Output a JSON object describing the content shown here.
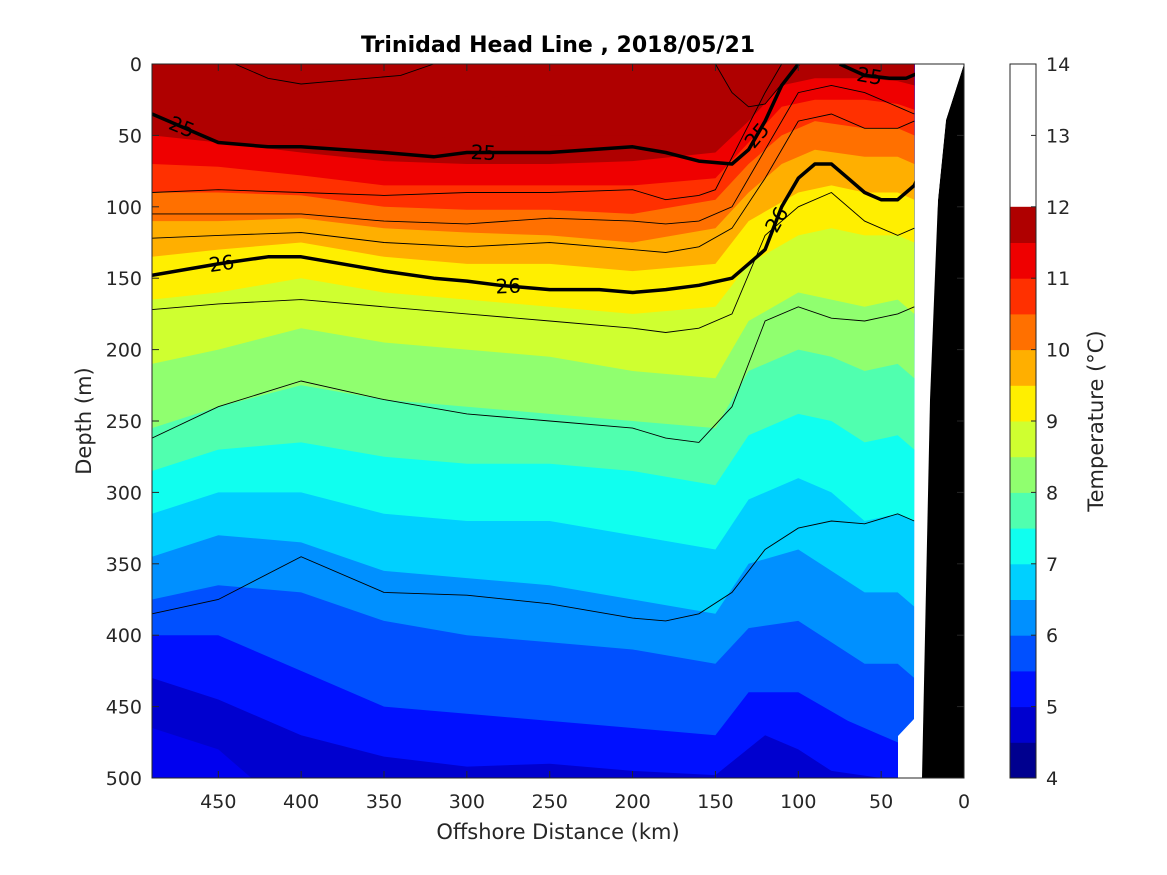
{
  "chart_data": {
    "type": "contour",
    "title": "Trinidad Head Line , 2018/05/21",
    "xlabel": "Offshore Distance (km)",
    "ylabel": "Depth (m)",
    "x_ticks": [
      "450",
      "400",
      "350",
      "300",
      "250",
      "200",
      "150",
      "100",
      "50",
      "0"
    ],
    "x_tick_values": [
      450,
      400,
      350,
      300,
      250,
      200,
      150,
      100,
      50,
      0
    ],
    "xlim": [
      490,
      0
    ],
    "y_ticks": [
      "0",
      "50",
      "100",
      "150",
      "200",
      "250",
      "300",
      "350",
      "400",
      "450",
      "500"
    ],
    "y_tick_values": [
      0,
      50,
      100,
      150,
      200,
      250,
      300,
      350,
      400,
      450,
      500
    ],
    "ylim": [
      0,
      500
    ],
    "colorbar": {
      "label": "Temperature (°C)",
      "ticks": [
        "4",
        "5",
        "6",
        "7",
        "8",
        "9",
        "10",
        "11",
        "12",
        "13",
        "14"
      ],
      "range": [
        4,
        14
      ],
      "step": 0.5,
      "colors": [
        "#00008f",
        "#0000cf",
        "#0010ff",
        "#0050ff",
        "#0090ff",
        "#00d0ff",
        "#10ffef",
        "#50ffaf",
        "#90ff6f",
        "#cfff30",
        "#ffef00",
        "#ffaf00",
        "#ff7000",
        "#ff3000",
        "#ef0000",
        "#af0000"
      ]
    },
    "density_contour_labels": [
      "25",
      "26"
    ],
    "temperature_layers": [
      {
        "t": 4.5,
        "x": [
          490,
          450,
          430,
          400,
          350,
          300,
          250,
          200,
          150,
          100,
          50,
          30
        ],
        "depth": [
          465,
          480,
          500,
          500,
          500,
          500,
          500,
          500,
          500,
          500,
          500,
          500
        ]
      },
      {
        "t": 5.0,
        "x": [
          490,
          450,
          400,
          350,
          300,
          250,
          200,
          150,
          120,
          100,
          80,
          50,
          30
        ],
        "depth": [
          430,
          445,
          470,
          485,
          492,
          490,
          495,
          498,
          470,
          480,
          495,
          500,
          500
        ]
      },
      {
        "t": 5.5,
        "x": [
          490,
          450,
          400,
          350,
          300,
          250,
          200,
          150,
          130,
          100,
          70,
          50,
          30
        ],
        "depth": [
          400,
          400,
          425,
          450,
          455,
          460,
          465,
          470,
          440,
          440,
          460,
          470,
          480
        ]
      },
      {
        "t": 6.0,
        "x": [
          490,
          450,
          400,
          350,
          300,
          250,
          200,
          150,
          130,
          100,
          80,
          60,
          40,
          30
        ],
        "depth": [
          375,
          365,
          370,
          390,
          400,
          405,
          410,
          420,
          395,
          390,
          405,
          420,
          420,
          430
        ]
      },
      {
        "t": 6.5,
        "x": [
          490,
          450,
          400,
          350,
          300,
          250,
          200,
          150,
          130,
          100,
          80,
          60,
          40,
          30
        ],
        "depth": [
          345,
          330,
          335,
          355,
          360,
          365,
          375,
          385,
          350,
          340,
          355,
          370,
          370,
          380
        ]
      },
      {
        "t": 7.0,
        "x": [
          490,
          450,
          400,
          350,
          300,
          250,
          200,
          150,
          130,
          100,
          80,
          60,
          40,
          30
        ],
        "depth": [
          315,
          300,
          300,
          315,
          320,
          320,
          330,
          340,
          305,
          290,
          300,
          320,
          315,
          320
        ]
      },
      {
        "t": 7.5,
        "x": [
          490,
          450,
          400,
          350,
          300,
          250,
          200,
          150,
          130,
          100,
          80,
          60,
          40,
          30
        ],
        "depth": [
          285,
          270,
          265,
          275,
          280,
          280,
          285,
          295,
          260,
          245,
          250,
          265,
          260,
          270
        ]
      },
      {
        "t": 8.0,
        "x": [
          490,
          450,
          400,
          350,
          300,
          250,
          200,
          150,
          130,
          100,
          80,
          60,
          40,
          30
        ],
        "depth": [
          255,
          240,
          225,
          235,
          240,
          245,
          250,
          255,
          215,
          200,
          205,
          215,
          210,
          220
        ]
      },
      {
        "t": 8.5,
        "x": [
          490,
          450,
          400,
          350,
          300,
          250,
          200,
          150,
          130,
          100,
          80,
          60,
          40,
          30
        ],
        "depth": [
          210,
          200,
          185,
          195,
          200,
          205,
          215,
          220,
          180,
          160,
          165,
          170,
          165,
          175
        ]
      },
      {
        "t": 9.0,
        "x": [
          490,
          450,
          400,
          350,
          300,
          250,
          200,
          150,
          130,
          100,
          80,
          60,
          40,
          30
        ],
        "depth": [
          165,
          160,
          150,
          160,
          165,
          170,
          175,
          170,
          140,
          120,
          115,
          120,
          120,
          125
        ]
      },
      {
        "t": 9.5,
        "x": [
          490,
          450,
          400,
          350,
          300,
          250,
          200,
          150,
          130,
          100,
          80,
          60,
          40,
          30
        ],
        "depth": [
          135,
          130,
          125,
          135,
          140,
          140,
          145,
          140,
          110,
          90,
          85,
          90,
          90,
          95
        ]
      },
      {
        "t": 10.0,
        "x": [
          490,
          450,
          400,
          350,
          300,
          250,
          200,
          150,
          130,
          110,
          90,
          60,
          40,
          30
        ],
        "depth": [
          110,
          110,
          108,
          115,
          118,
          120,
          125,
          115,
          90,
          70,
          60,
          65,
          65,
          70
        ]
      },
      {
        "t": 10.5,
        "x": [
          490,
          450,
          400,
          350,
          300,
          250,
          200,
          150,
          130,
          110,
          90,
          60,
          40,
          30
        ],
        "depth": [
          90,
          90,
          92,
          100,
          102,
          102,
          105,
          95,
          70,
          50,
          40,
          45,
          45,
          50
        ]
      },
      {
        "t": 11.0,
        "x": [
          490,
          450,
          400,
          350,
          300,
          250,
          200,
          150,
          130,
          110,
          90,
          60,
          40,
          30
        ],
        "depth": [
          70,
          72,
          78,
          85,
          85,
          85,
          85,
          80,
          55,
          30,
          25,
          25,
          28,
          32
        ]
      },
      {
        "t": 11.5,
        "x": [
          490,
          450,
          400,
          350,
          300,
          250,
          200,
          150,
          130,
          110,
          90,
          60,
          40,
          30
        ],
        "depth": [
          50,
          55,
          62,
          68,
          70,
          70,
          68,
          62,
          40,
          15,
          10,
          10,
          12,
          15
        ]
      },
      {
        "t": 12.0,
        "x": [
          490,
          450,
          400,
          350,
          300,
          250,
          200,
          180,
          160,
          140,
          120,
          100,
          80,
          60,
          30
        ],
        "depth": [
          30,
          35,
          45,
          50,
          52,
          50,
          50,
          50,
          40,
          25,
          5,
          0,
          0,
          0,
          0
        ]
      },
      {
        "t": 12.5,
        "x": [
          490,
          450,
          420,
          400,
          350,
          300,
          250,
          200,
          180,
          160,
          150,
          120,
          100,
          80,
          60,
          30
        ],
        "depth": [
          0,
          5,
          15,
          20,
          18,
          25,
          20,
          30,
          45,
          30,
          5,
          0,
          0,
          0,
          0,
          0
        ]
      },
      {
        "t": 13.0,
        "x": [
          440,
          420,
          400,
          380,
          360,
          340,
          320
        ],
        "depth": [
          0,
          12,
          15,
          12,
          10,
          8,
          0
        ]
      },
      {
        "t": 13.5,
        "x": [
          420,
          410,
          400,
          390,
          380
        ],
        "depth": [
          0,
          5,
          6,
          5,
          0
        ]
      }
    ],
    "thin_contours": [
      {
        "x": [
          490,
          450,
          400,
          350,
          300,
          250,
          200,
          180,
          160,
          150,
          120,
          110
        ],
        "depth": [
          90,
          88,
          90,
          92,
          90,
          90,
          88,
          95,
          92,
          88,
          20,
          0
        ]
      },
      {
        "x": [
          490,
          450,
          400,
          350,
          300,
          250,
          200,
          180,
          160,
          140,
          120,
          100,
          80,
          60,
          40,
          30
        ],
        "depth": [
          105,
          105,
          105,
          110,
          112,
          108,
          110,
          112,
          110,
          100,
          60,
          20,
          15,
          20,
          30,
          35
        ]
      },
      {
        "x": [
          490,
          450,
          400,
          350,
          300,
          250,
          200,
          180,
          160,
          140,
          120,
          100,
          80,
          60,
          40,
          30
        ],
        "depth": [
          122,
          120,
          118,
          125,
          128,
          125,
          130,
          132,
          128,
          115,
          80,
          40,
          35,
          45,
          45,
          40
        ]
      },
      {
        "x": [
          490,
          450,
          400,
          350,
          300,
          250,
          200,
          180,
          160,
          140,
          120,
          100,
          80,
          60,
          40,
          30
        ],
        "depth": [
          172,
          168,
          165,
          170,
          175,
          180,
          185,
          188,
          185,
          175,
          120,
          100,
          90,
          110,
          120,
          115
        ]
      },
      {
        "x": [
          490,
          450,
          400,
          350,
          300,
          250,
          200,
          180,
          160,
          140,
          120,
          100,
          80,
          60,
          40,
          30
        ],
        "depth": [
          262,
          240,
          222,
          235,
          245,
          250,
          255,
          262,
          265,
          240,
          180,
          170,
          178,
          180,
          175,
          170
        ]
      },
      {
        "x": [
          490,
          450,
          400,
          350,
          300,
          250,
          200,
          180,
          160,
          140,
          120,
          100,
          80,
          60,
          40,
          30
        ],
        "depth": [
          385,
          375,
          345,
          370,
          372,
          378,
          388,
          390,
          385,
          370,
          340,
          325,
          320,
          322,
          315,
          320
        ]
      },
      {
        "x": [
          440,
          420,
          400,
          380,
          360,
          340,
          320
        ],
        "depth": [
          0,
          10,
          14,
          12,
          10,
          8,
          0
        ]
      },
      {
        "x": [
          150,
          140,
          130,
          120,
          100
        ],
        "depth": [
          0,
          20,
          30,
          28,
          0
        ]
      }
    ],
    "thick_contours": [
      {
        "label": "25",
        "x": [
          490,
          450,
          420,
          400,
          350,
          320,
          300,
          280,
          250,
          200,
          180,
          160,
          140,
          130,
          120,
          110,
          100
        ],
        "depth": [
          35,
          55,
          58,
          58,
          62,
          65,
          62,
          62,
          62,
          58,
          62,
          68,
          70,
          60,
          40,
          15,
          0
        ]
      },
      {
        "label": "25",
        "x": [
          75,
          60,
          45,
          35,
          25
        ],
        "depth": [
          0,
          8,
          10,
          10,
          5
        ]
      },
      {
        "label": "26",
        "x": [
          490,
          450,
          420,
          400,
          350,
          320,
          300,
          280,
          250,
          220,
          200,
          180,
          160,
          140,
          130,
          120,
          110,
          100,
          90,
          80,
          70,
          60,
          50,
          40,
          30,
          20
        ],
        "depth": [
          148,
          140,
          135,
          135,
          145,
          150,
          152,
          155,
          158,
          158,
          160,
          158,
          155,
          150,
          140,
          130,
          100,
          80,
          70,
          70,
          80,
          90,
          95,
          95,
          85,
          60
        ]
      }
    ]
  }
}
